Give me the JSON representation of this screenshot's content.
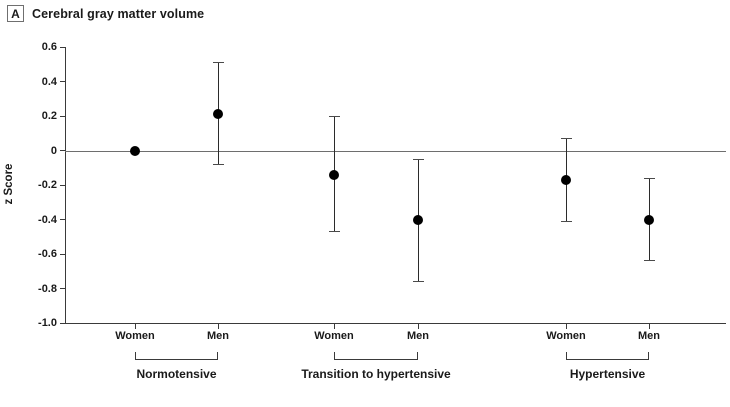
{
  "panel": {
    "letter": "A",
    "title": "Cerebral gray matter volume"
  },
  "chart_data": {
    "type": "scatter",
    "title": "Cerebral gray matter volume",
    "xlabel": "",
    "ylabel": "z Score",
    "ylim": [
      -1.0,
      0.6
    ],
    "ytick_labels": [
      "0.6",
      "0.4",
      "0.2",
      "0",
      "-0.2",
      "-0.4",
      "-0.6",
      "-0.8",
      "-1.0"
    ],
    "zero_reference_line": true,
    "grid": false,
    "legend": "none",
    "marker": "filled-circle",
    "error_bars": "95% CI with caps",
    "groups": [
      {
        "label": "Normotensive",
        "points": [
          {
            "sex": "Women",
            "x_frac": 0.106,
            "z": 0.0,
            "ci_low": null,
            "ci_high": null
          },
          {
            "sex": "Men",
            "x_frac": 0.231,
            "z": 0.21,
            "ci_low": -0.08,
            "ci_high": 0.51
          }
        ]
      },
      {
        "label": "Transition to hypertensive",
        "points": [
          {
            "sex": "Women",
            "x_frac": 0.407,
            "z": -0.14,
            "ci_low": -0.47,
            "ci_high": 0.2
          },
          {
            "sex": "Men",
            "x_frac": 0.534,
            "z": -0.4,
            "ci_low": -0.76,
            "ci_high": -0.05
          }
        ]
      },
      {
        "label": "Hypertensive",
        "points": [
          {
            "sex": "Women",
            "x_frac": 0.758,
            "z": -0.17,
            "ci_low": -0.41,
            "ci_high": 0.07
          },
          {
            "sex": "Men",
            "x_frac": 0.883,
            "z": -0.4,
            "ci_low": -0.64,
            "ci_high": -0.16
          }
        ]
      }
    ],
    "colors": {
      "point": "#000000",
      "error_line": "#2b2b2b",
      "zero_line": "#6e6e6e",
      "axis": "#3a3a3a",
      "text": "#1a1a1a",
      "background": "#ffffff"
    }
  }
}
